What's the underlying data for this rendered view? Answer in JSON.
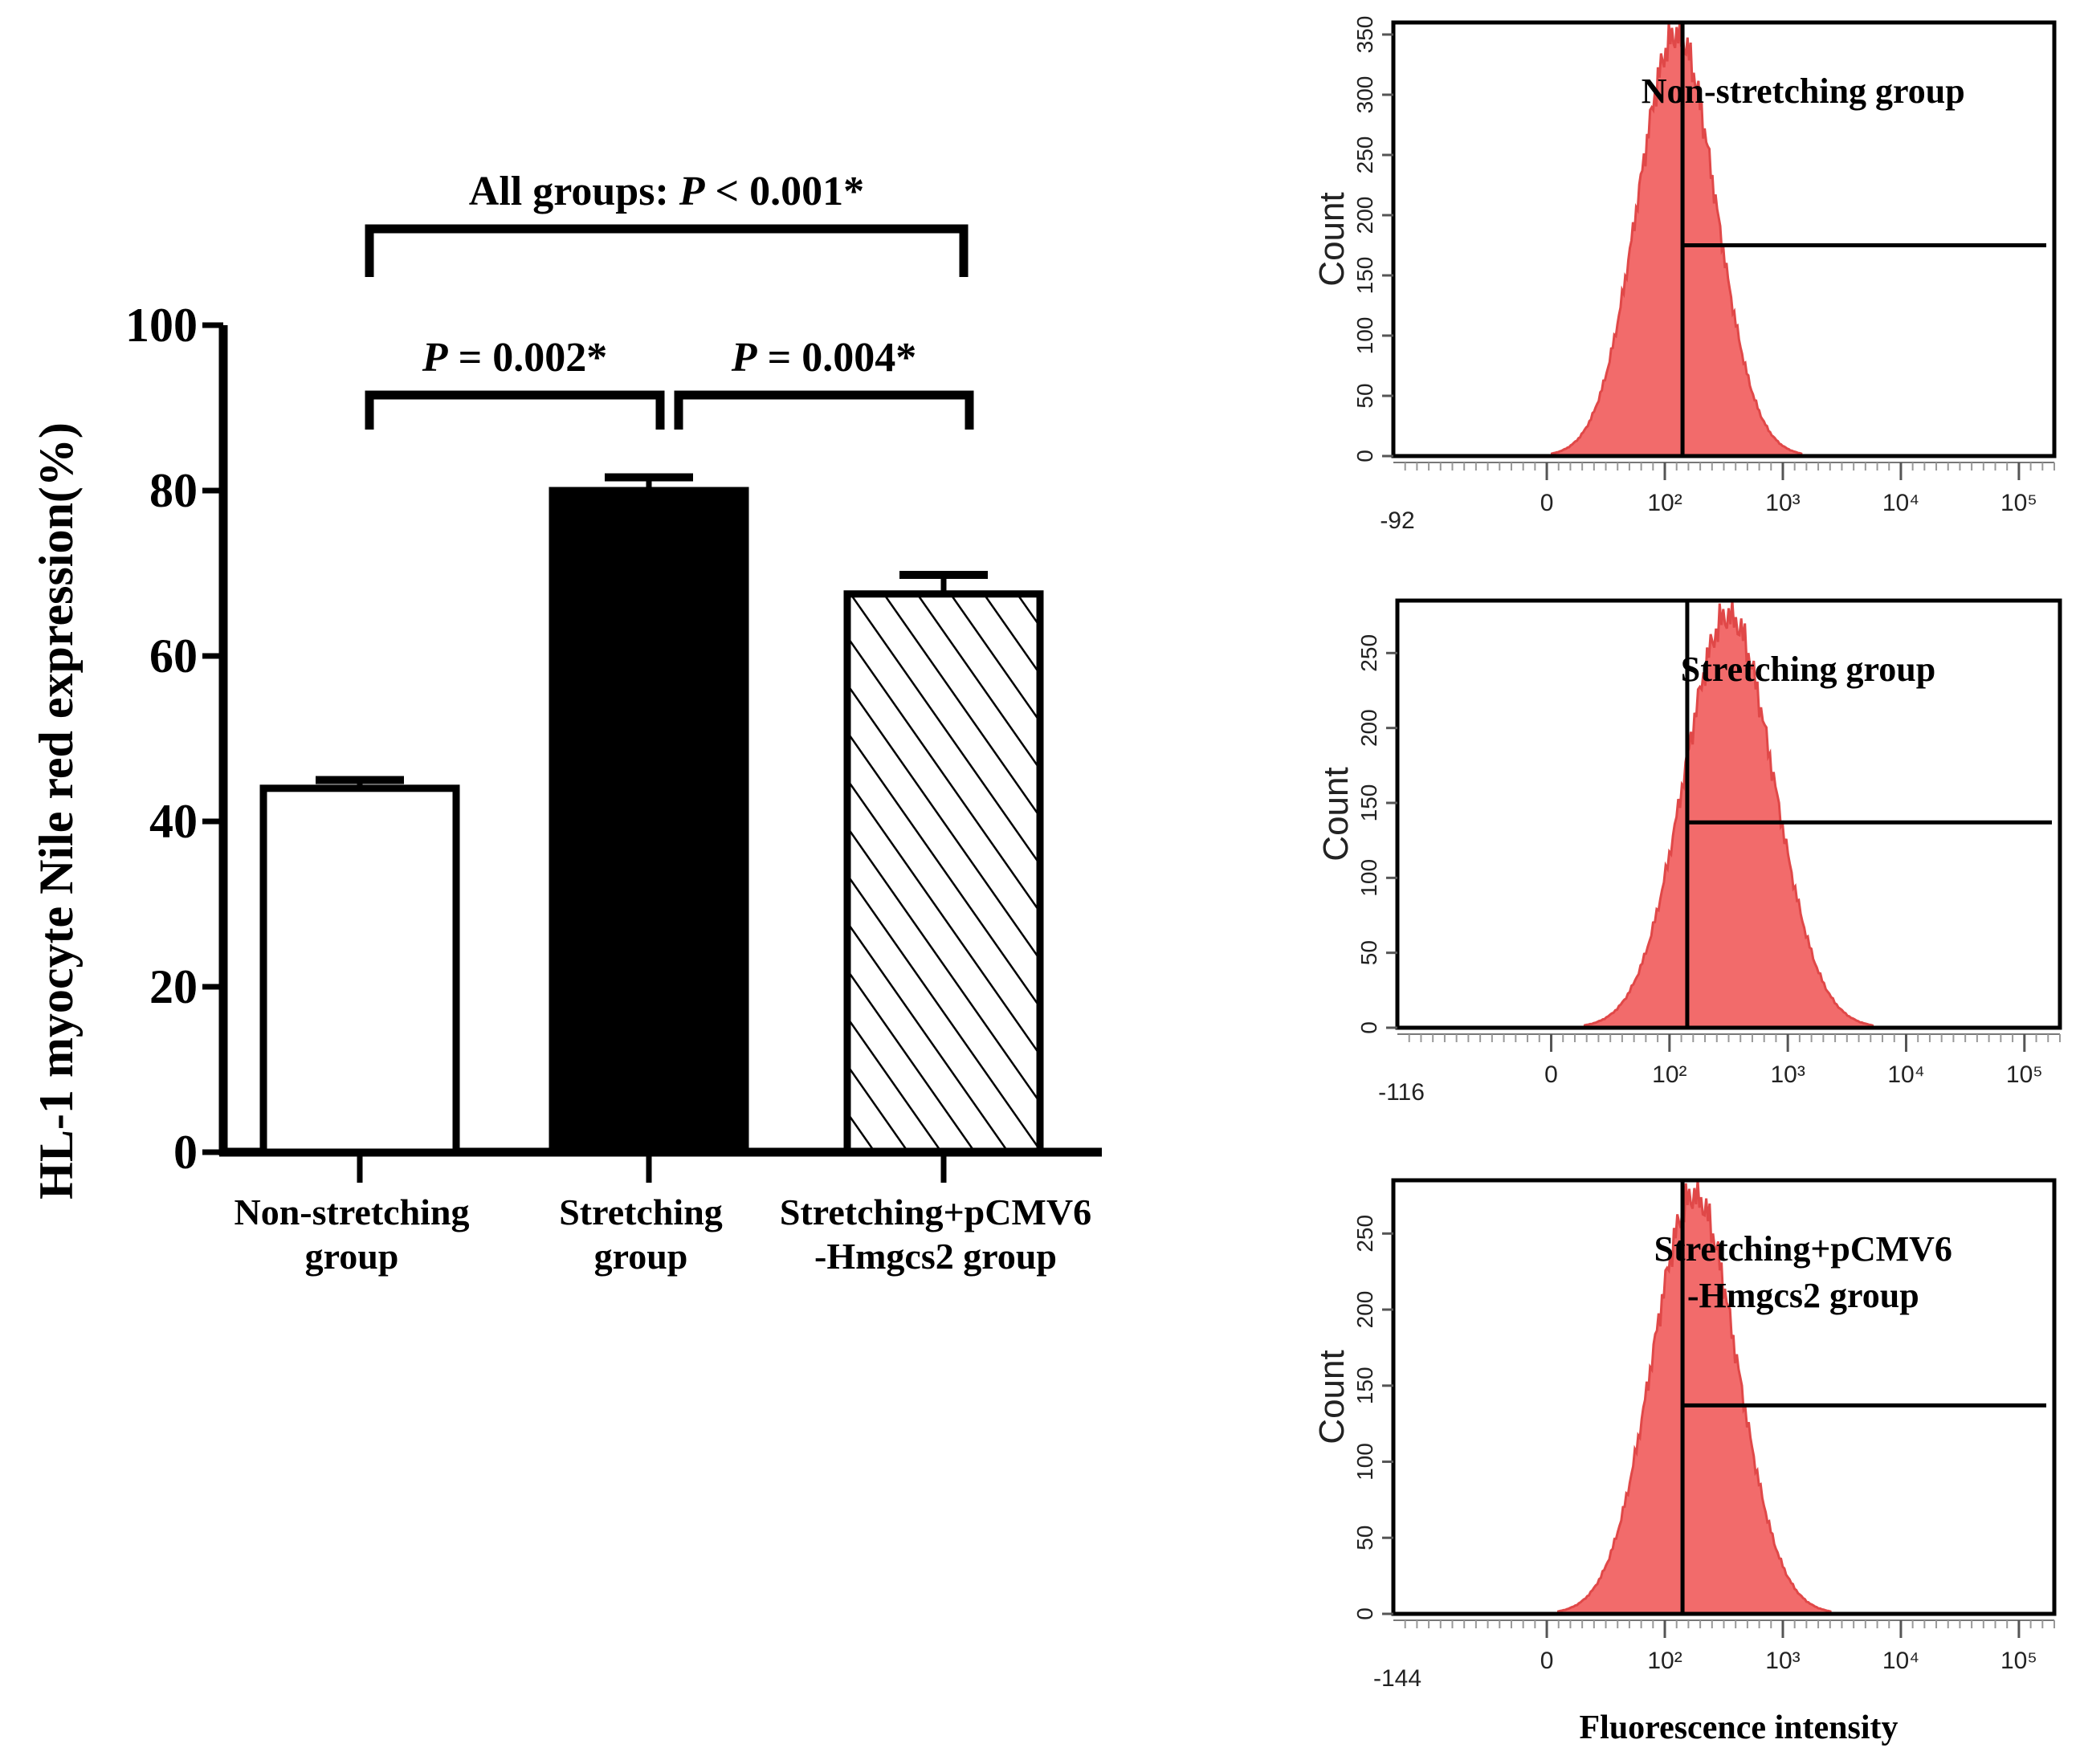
{
  "bar_chart": {
    "type": "bar",
    "ylabel": "HL-1 myocyte Nile red expression(%)",
    "ylim": [
      0,
      100
    ],
    "yticks": [
      0,
      20,
      40,
      60,
      80,
      100
    ],
    "categories": [
      {
        "line1": "Non-stretching",
        "line2": "group",
        "value": 44,
        "error": 1,
        "fill": "white"
      },
      {
        "line1": "Stretching",
        "line2": "group",
        "value": 80,
        "error": 1.6,
        "fill": "black"
      },
      {
        "line1": "Stretching+pCMV6",
        "line2": "-Hmgcs2 group",
        "value": 67.5,
        "error": 2.3,
        "fill": "hatch"
      }
    ],
    "comparisons": [
      {
        "prefix": "All groups: ",
        "p": "P",
        "rest": " < 0.001*",
        "from": 0,
        "to": 2
      },
      {
        "prefix": "",
        "p": "P",
        "rest": " = 0.002*",
        "from": 0,
        "to": 1
      },
      {
        "prefix": "",
        "p": "P",
        "rest": " = 0.004*",
        "from": 1,
        "to": 2
      }
    ]
  },
  "histograms": {
    "type": "area",
    "ylabel": "Count",
    "xlabel": "Fluorescence intensity",
    "color": "#f26b6b",
    "panels": [
      {
        "title_lines": [
          "Non-stretching group"
        ],
        "yticks": [
          0,
          50,
          100,
          150,
          200,
          250,
          300,
          350
        ],
        "ymax": 360,
        "peak_count": 350,
        "peak_log": 2.1,
        "spread": 0.33,
        "gate_count": 175,
        "xmin_label": "-92"
      },
      {
        "title_lines": [
          "Stretching group"
        ],
        "yticks": [
          0,
          50,
          100,
          150,
          200,
          250
        ],
        "ymax": 285,
        "peak_count": 275,
        "peak_log": 2.5,
        "spread": 0.38,
        "gate_count": 137,
        "xmin_label": "-116"
      },
      {
        "title_lines": [
          "Stretching+pCMV6",
          "-Hmgcs2 group"
        ],
        "yticks": [
          0,
          50,
          100,
          150,
          200,
          250
        ],
        "ymax": 285,
        "peak_count": 275,
        "peak_log": 2.25,
        "spread": 0.36,
        "gate_count": 137,
        "xmin_label": "-144"
      }
    ],
    "xticks": [
      {
        "label": "0",
        "log": 1.0
      },
      {
        "label": "10²",
        "log": 2.0
      },
      {
        "label": "10³",
        "log": 3.0
      },
      {
        "label": "10⁴",
        "log": 4.0
      },
      {
        "label": "10⁵",
        "log": 5.0
      }
    ],
    "gate_log": 2.15
  }
}
